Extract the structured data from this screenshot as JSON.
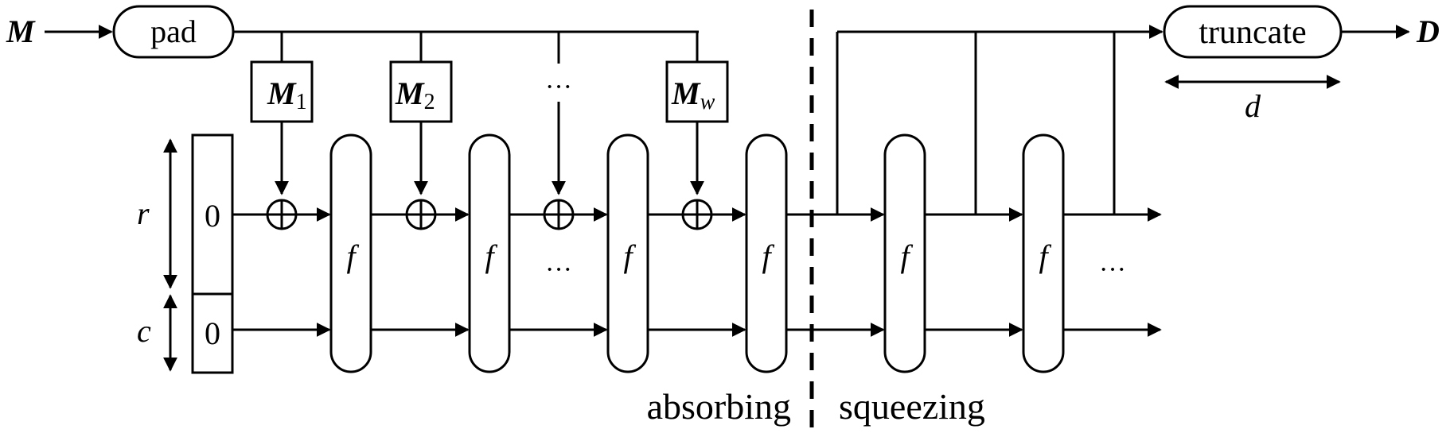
{
  "input_label": "M",
  "pad_label": "pad",
  "blocks": [
    {
      "main": "M",
      "sub": "1"
    },
    {
      "main": "M",
      "sub": "2"
    },
    {
      "main": "M",
      "sub": "w"
    }
  ],
  "block_ellipsis": "···",
  "state": {
    "r_label": "r",
    "c_label": "c",
    "r_value": "0",
    "c_value": "0"
  },
  "f_label": "f",
  "middle_ellipsis": "···",
  "squeeze_ellipsis": "···",
  "phase_labels": {
    "absorbing": "absorbing",
    "squeezing": "squeezing"
  },
  "truncate_label": "truncate",
  "d_label": "d",
  "output_label": "D"
}
